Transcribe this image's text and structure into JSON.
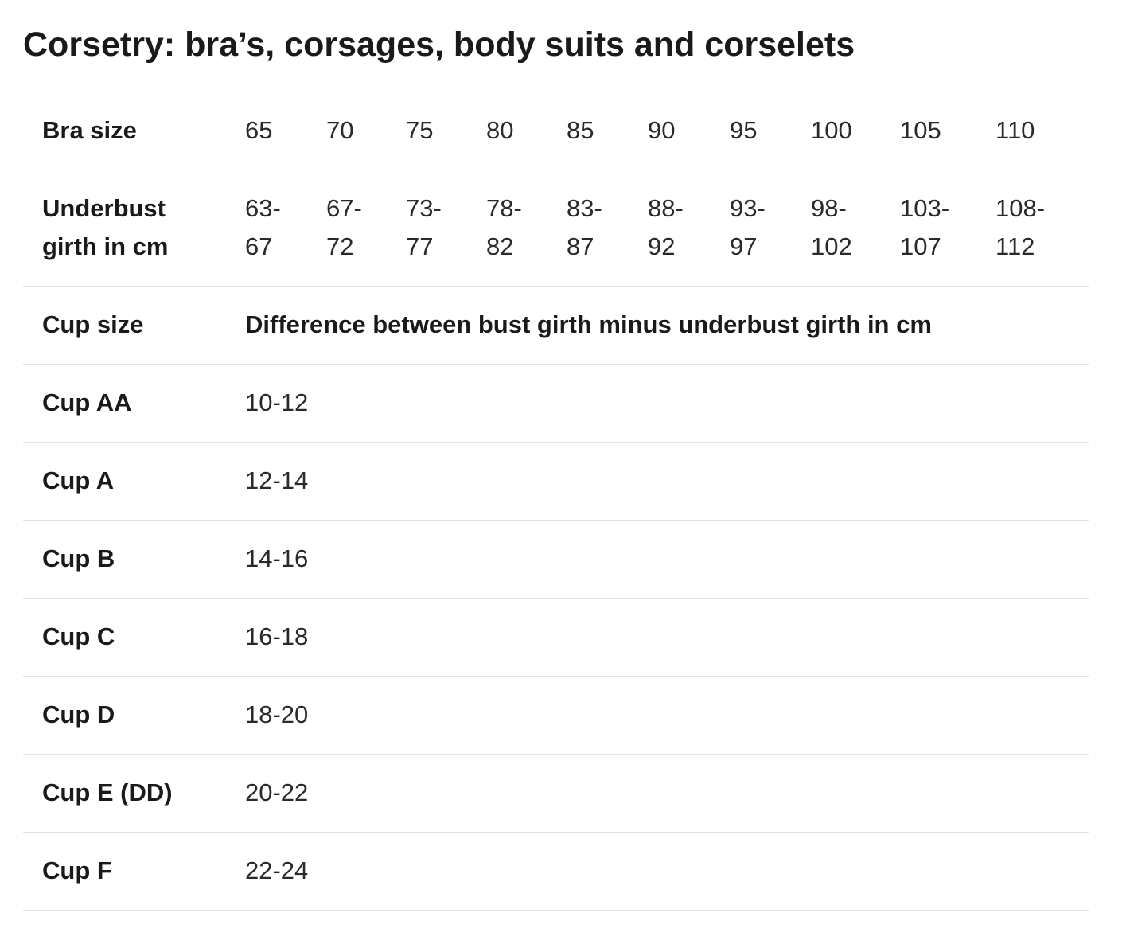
{
  "title": "Corsetry: bra’s, corsages, body suits and corselets",
  "table": {
    "bra_size": {
      "label": "Bra size",
      "values": [
        "65",
        "70",
        "75",
        "80",
        "85",
        "90",
        "95",
        "100",
        "105",
        "110"
      ]
    },
    "underbust": {
      "label_line1": "Underbust",
      "label_line2": "girth in cm",
      "values": [
        {
          "top": "63-",
          "bottom": "67"
        },
        {
          "top": "67-",
          "bottom": "72"
        },
        {
          "top": "73-",
          "bottom": "77"
        },
        {
          "top": "78-",
          "bottom": "82"
        },
        {
          "top": "83-",
          "bottom": "87"
        },
        {
          "top": "88-",
          "bottom": "92"
        },
        {
          "top": "93-",
          "bottom": "97"
        },
        {
          "top": "98-",
          "bottom": "102"
        },
        {
          "top": "103-",
          "bottom": "107"
        },
        {
          "top": "108-",
          "bottom": "112"
        }
      ]
    },
    "cup_header": {
      "label": "Cup size",
      "description": "Difference between bust girth minus underbust girth in cm"
    },
    "cups": [
      {
        "label": "Cup AA",
        "range": "10-12"
      },
      {
        "label": "Cup A",
        "range": "12-14"
      },
      {
        "label": "Cup B",
        "range": "14-16"
      },
      {
        "label": "Cup C",
        "range": "16-18"
      },
      {
        "label": "Cup D",
        "range": "18-20"
      },
      {
        "label": "Cup E (DD)",
        "range": "20-22"
      },
      {
        "label": "Cup F",
        "range": "22-24"
      }
    ]
  }
}
